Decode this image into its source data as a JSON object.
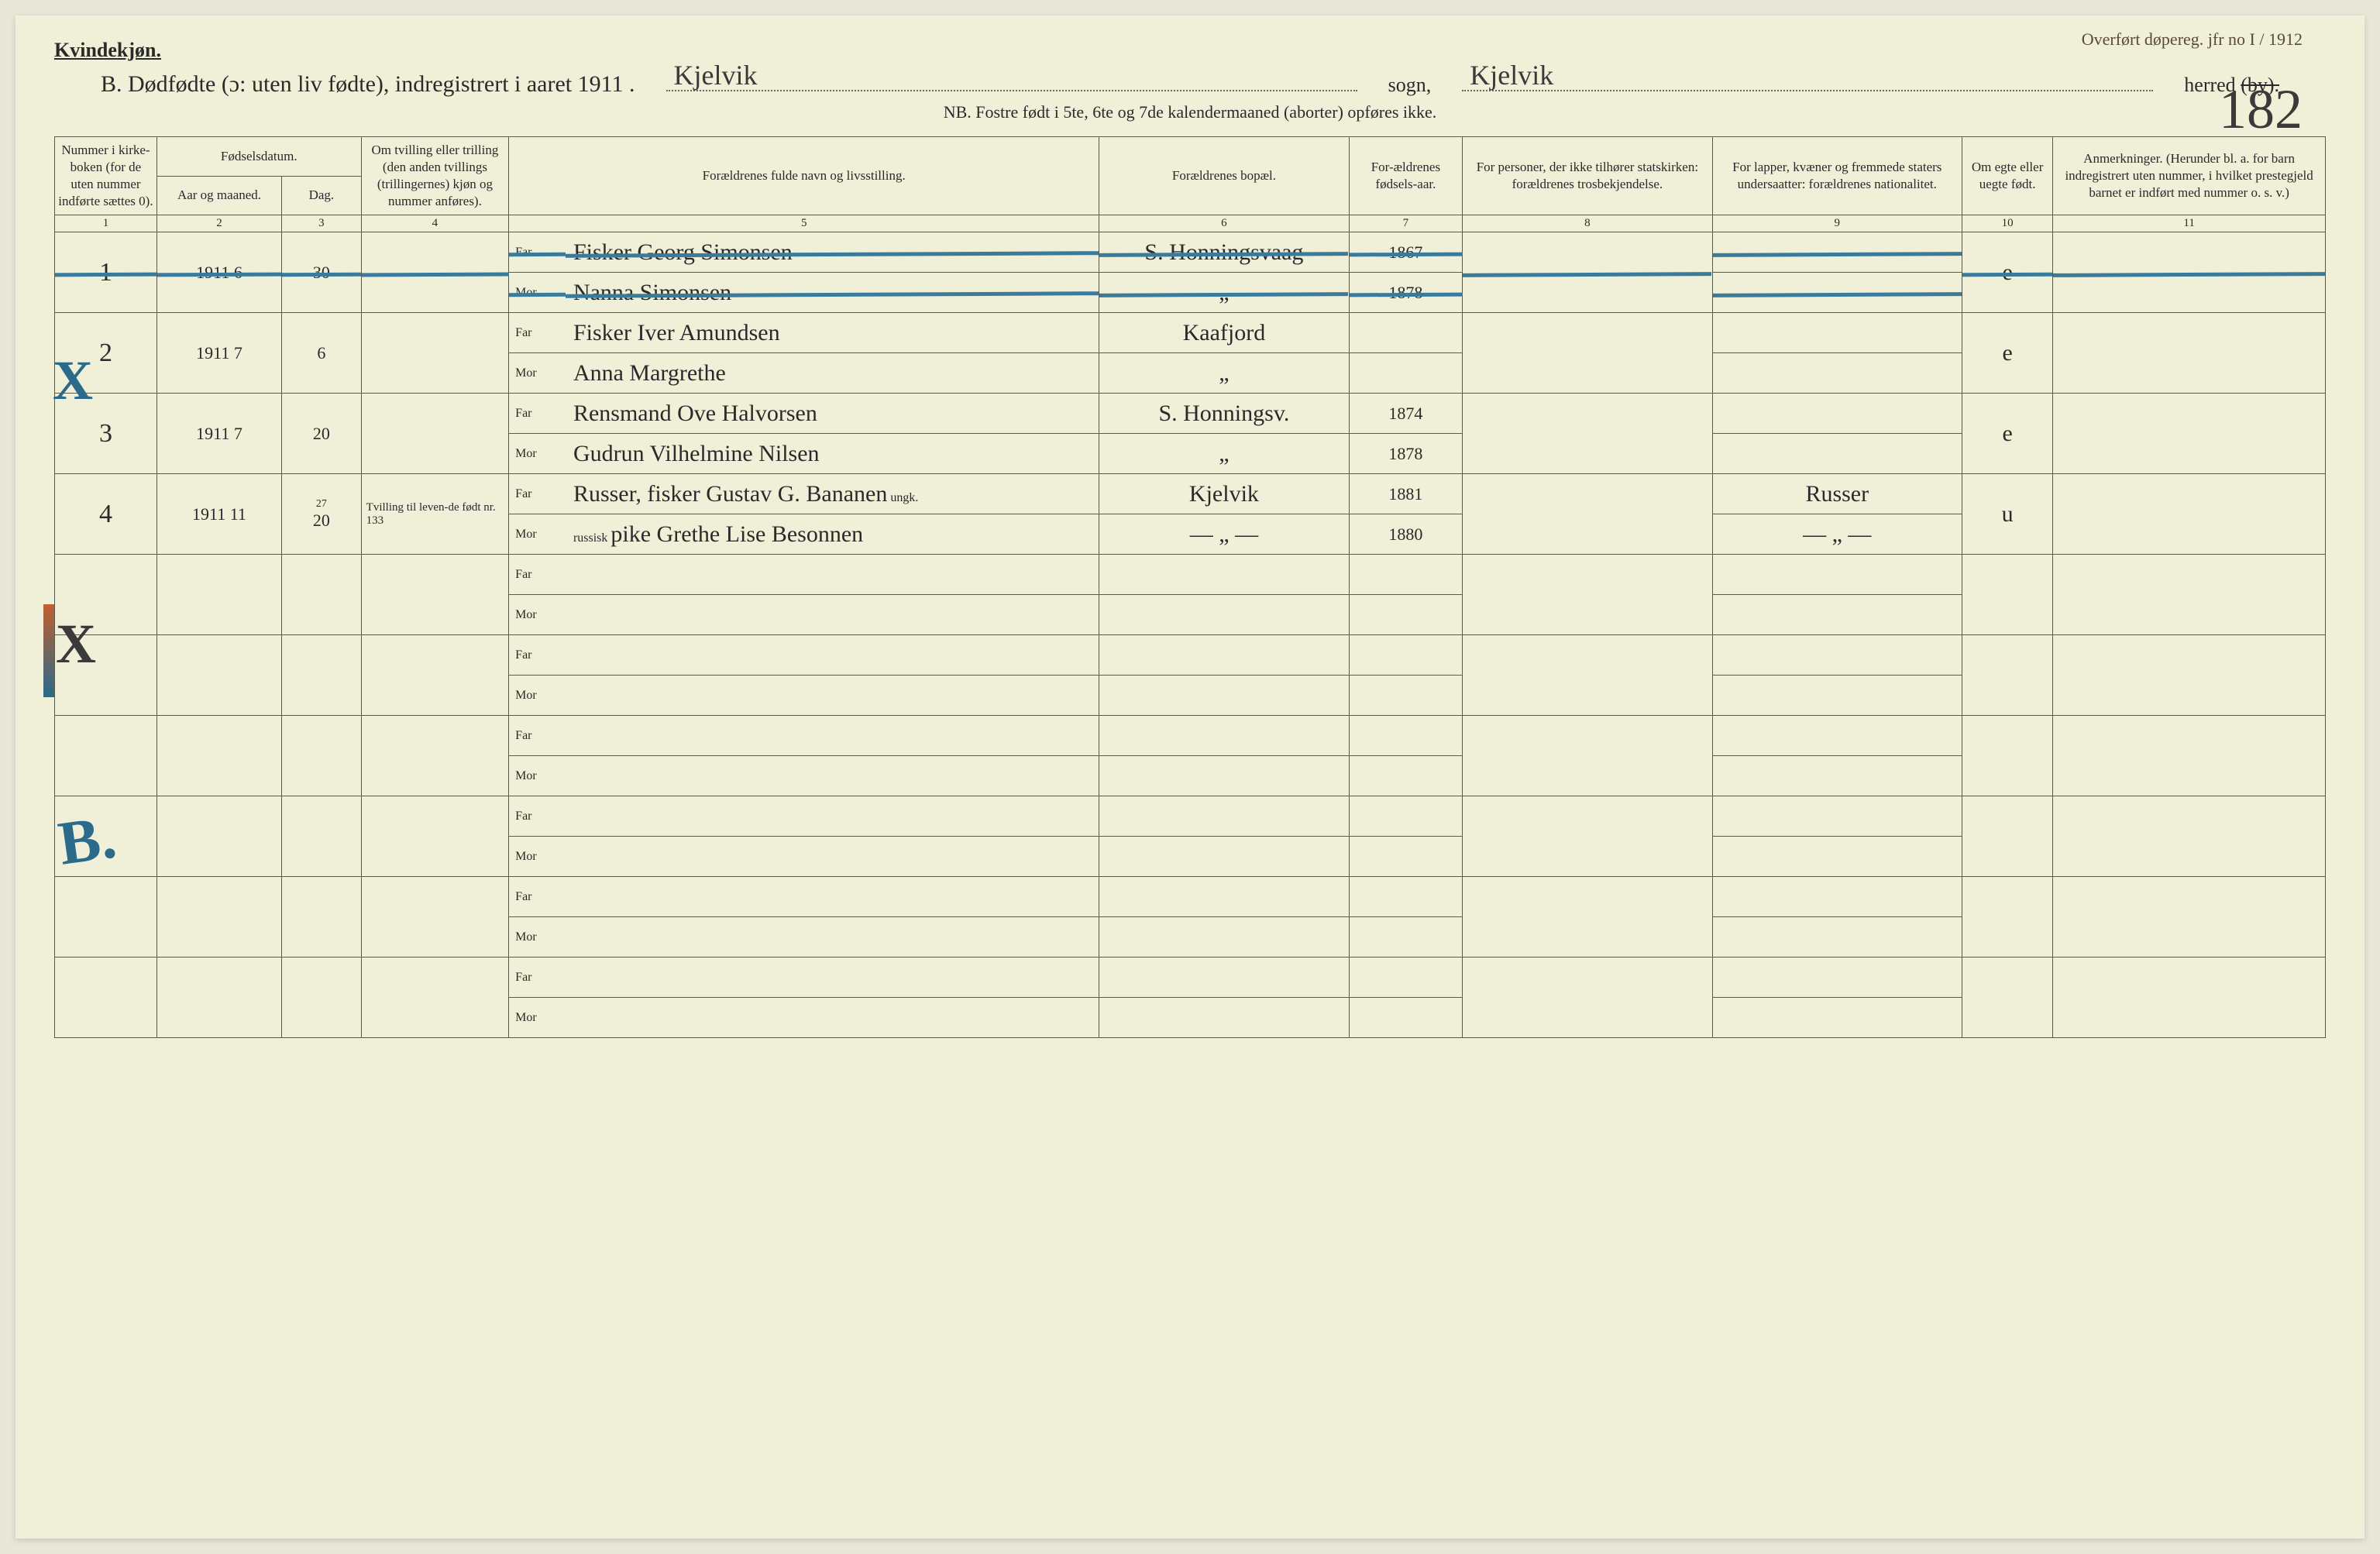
{
  "meta": {
    "gender_label": "Kvindekjøn.",
    "top_right_note": "Overført døpereg. jfr no I / 1912",
    "title_prefix": "B.  Dødfødte (ɔ: uten liv fødte), indregistrert i aaret 191",
    "year_suffix": "1",
    "sogn_value": "Kjelvik",
    "sogn_label": "sogn,",
    "herred_value": "Kjelvik",
    "herred_label": "herred",
    "herred_struck": "(by).",
    "page_number": "182",
    "subtitle": "NB.  Fostre født i 5te, 6te og 7de kalendermaaned (aborter) opføres ikke."
  },
  "columns": {
    "c1": "Nummer i kirke-boken (for de uten nummer indførte sættes 0).",
    "c2": "Fødselsdatum.",
    "c2a": "Aar og maaned.",
    "c2b": "Dag.",
    "c4": "Om tvilling eller trilling (den anden tvillings (trillingernes) kjøn og nummer anføres).",
    "c5": "Forældrenes fulde navn og livsstilling.",
    "c6": "Forældrenes bopæl.",
    "c7": "For-ældrenes fødsels-aar.",
    "c8": "For personer, der ikke tilhører statskirken: forældrenes trosbekjendelse.",
    "c9": "For lapper, kvæner og fremmede staters undersaatter: forældrenes nationalitet.",
    "c10": "Om egte eller uegte født.",
    "c11": "Anmerkninger. (Herunder bl. a. for barn indregistrert uten nummer, i hvilket prestegjeld barnet er indført med nummer o. s. v.)",
    "far": "Far",
    "mor": "Mor"
  },
  "colnums": [
    "1",
    "2",
    "3",
    "4",
    "5",
    "6",
    "7",
    "8",
    "9",
    "10",
    "11"
  ],
  "rows": [
    {
      "num": "1",
      "year_mo": "1911   6",
      "day": "30",
      "twin": "",
      "far": "Fisker Georg Simonsen",
      "mor": "Nanna Simonsen",
      "bopel_far": "S. Honningsvaag",
      "bopel_mor": "„",
      "byr_far": "1867",
      "byr_mor": "1878",
      "c8": "",
      "c9": "",
      "c10": "e",
      "c11": "",
      "struck": true
    },
    {
      "num": "2",
      "year_mo": "1911   7",
      "day": "6",
      "twin": "",
      "far": "Fisker Iver Amundsen",
      "mor": "Anna Margrethe",
      "bopel_far": "Kaafjord",
      "bopel_mor": "„",
      "byr_far": "",
      "byr_mor": "",
      "c8": "",
      "c9": "",
      "c10": "e",
      "c11": ""
    },
    {
      "num": "3",
      "year_mo": "1911   7",
      "day": "20",
      "twin": "",
      "far": "Rensmand Ove Halvorsen",
      "mor": "Gudrun Vilhelmine Nilsen",
      "bopel_far": "S. Honningsv.",
      "bopel_mor": "„",
      "byr_far": "1874",
      "byr_mor": "1878",
      "c8": "",
      "c9": "",
      "c10": "e",
      "c11": ""
    },
    {
      "num": "4",
      "year_mo": "1911  11",
      "day": "20",
      "day_note": "27",
      "twin": "Tvilling til leven-de født nr. 133",
      "far": "Russer, fisker Gustav G. Bananen",
      "far_note": "ungk.",
      "mor": "pike Grethe Lise Besonnen",
      "mor_note": "russisk",
      "bopel_far": "Kjelvik",
      "bopel_mor": "— „ —",
      "byr_far": "1881",
      "byr_mor": "1880",
      "c8": "",
      "c9_far": "Russer",
      "c9_mor": "— „ —",
      "c10": "u",
      "c11": ""
    }
  ],
  "empty_row_count": 6,
  "margin_marks": {
    "x1": "X",
    "x2": "X",
    "b": "B."
  },
  "colors": {
    "paper": "#f0efd8",
    "ink": "#2a2a2a",
    "rule": "#5a5a4a",
    "blue_pencil": "#3a7a9a",
    "script": "#3a3a3a"
  },
  "col_widths_pct": [
    4.5,
    5.5,
    3.5,
    6.5,
    26,
    11,
    5,
    11,
    11,
    4,
    12
  ]
}
